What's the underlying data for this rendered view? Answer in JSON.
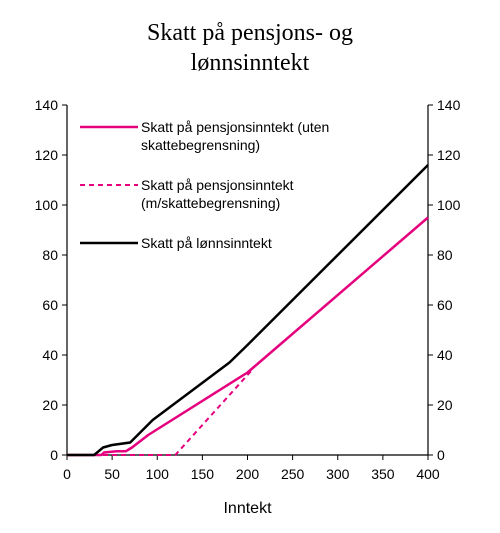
{
  "chart_data": {
    "type": "line",
    "title_lines": [
      "Skatt på pensjons- og",
      "lønnsinntekt"
    ],
    "xlabel": "Inntekt",
    "ylabel": "",
    "xlim": [
      0,
      400
    ],
    "ylim": [
      0,
      140
    ],
    "x_ticks": [
      "0",
      "50",
      "100",
      "150",
      "200",
      "250",
      "300",
      "350",
      "400"
    ],
    "y_ticks": [
      "0",
      "20",
      "40",
      "60",
      "80",
      "100",
      "120",
      "140"
    ],
    "y_ticks_right": [
      "0",
      "20",
      "40",
      "60",
      "80",
      "100",
      "120",
      "140"
    ],
    "grid": false,
    "legend_position": "top-left",
    "series": [
      {
        "legend_lines": [
          "Skatt på pensjonsinntekt (uten",
          "skattebegrensning)"
        ],
        "color": "#E5007E",
        "style": "solid",
        "points": [
          [
            0,
            0
          ],
          [
            38,
            0
          ],
          [
            41,
            1
          ],
          [
            55,
            1.5
          ],
          [
            65,
            1.5
          ],
          [
            72,
            3
          ],
          [
            90,
            8
          ],
          [
            200,
            33
          ],
          [
            400,
            95
          ]
        ]
      },
      {
        "legend_lines": [
          "Skatt på pensjonsinntekt",
          "(m/skattebegrensning)"
        ],
        "color": "#E5007E",
        "style": "dashed",
        "points": [
          [
            0,
            0
          ],
          [
            120,
            0
          ],
          [
            205,
            34
          ]
        ]
      },
      {
        "legend_lines": [
          "Skatt på lønnsinntekt"
        ],
        "color": "#000000",
        "style": "solid",
        "points": [
          [
            0,
            0
          ],
          [
            30,
            0
          ],
          [
            40,
            3
          ],
          [
            50,
            4
          ],
          [
            70,
            5
          ],
          [
            95,
            14
          ],
          [
            180,
            37
          ],
          [
            200,
            44
          ],
          [
            400,
            116
          ]
        ]
      }
    ]
  }
}
